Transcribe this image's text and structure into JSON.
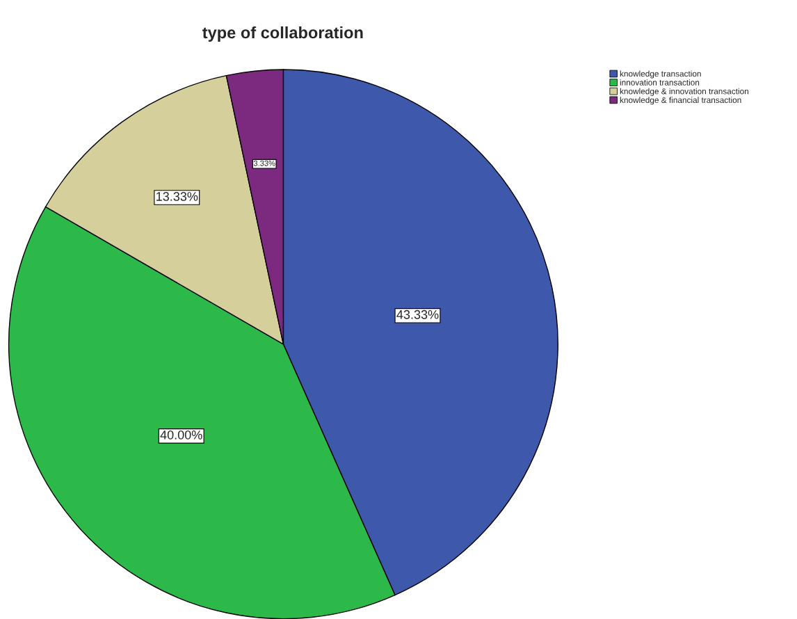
{
  "chart_data": {
    "type": "pie",
    "title": "type of collaboration",
    "categories": [
      "knowledge transaction",
      "innovation transaction",
      "knowledge & innovation transaction",
      "knowledge & financial transaction"
    ],
    "values": [
      43.33,
      40.0,
      13.33,
      3.33
    ],
    "value_labels": [
      "43.33%",
      "40.00%",
      "13.33%",
      "3.33%"
    ],
    "colors": [
      "#3e58ac",
      "#2db84a",
      "#d4cf9b",
      "#7b2a7f"
    ],
    "legend": "top right"
  }
}
